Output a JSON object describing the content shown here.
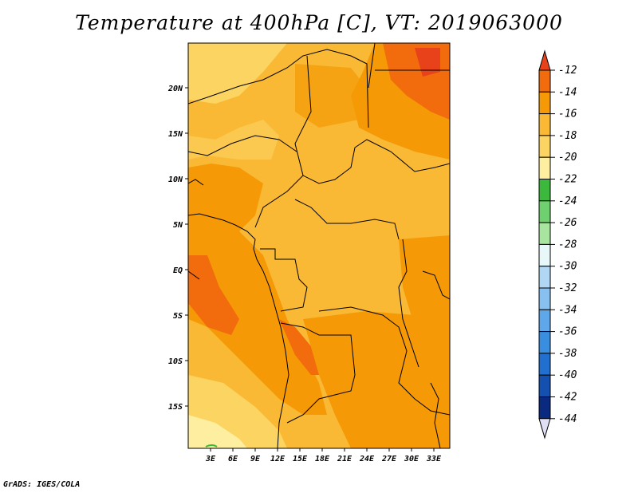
{
  "title": "Temperature at 400hPa [C], VT: 2019063000",
  "credit": "GrADS: IGES/COLA",
  "map": {
    "y_ticks": [
      "20N",
      "15N",
      "10N",
      "5N",
      "EQ",
      "5S",
      "10S",
      "15S"
    ],
    "x_ticks": [
      "3E",
      "6E",
      "9E",
      "12E",
      "15E",
      "18E",
      "21E",
      "24E",
      "27E",
      "30E",
      "33E"
    ]
  },
  "colorbar": {
    "labels": [
      "-12",
      "-14",
      "-16",
      "-18",
      "-20",
      "-22",
      "-24",
      "-26",
      "-28",
      "-30",
      "-32",
      "-34",
      "-36",
      "-38",
      "-40",
      "-42",
      "-44"
    ],
    "colors": [
      "#e8421a",
      "#f26b0c",
      "#f59a06",
      "#f9b935",
      "#fcd462",
      "#fdeea0",
      "#3cb83c",
      "#6fd06f",
      "#a8e6a0",
      "#e8f8f8",
      "#b0d8f5",
      "#88c0f0",
      "#5ea8ea",
      "#3a8ee0",
      "#2170d0",
      "#1450b0",
      "#0a2a80",
      "#08106a",
      "#e0e0f5"
    ]
  }
}
